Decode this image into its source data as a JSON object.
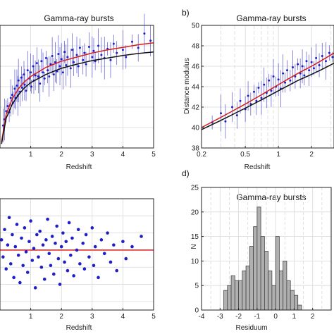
{
  "colors": {
    "points": "#1f1fc8",
    "red_curve": "#d81b1b",
    "black_curve": "#111111",
    "bars": "#b0b0b0",
    "grid": "#d9d9d9"
  },
  "chart_data": [
    {
      "type": "scatter",
      "panel_label": "",
      "title": "Gamma-ray bursts",
      "xlabel": "Redshift",
      "ylabel": "",
      "xlim": [
        0,
        5
      ],
      "ylim": [
        38,
        50
      ],
      "xticks": [
        1,
        2,
        3,
        4,
        5
      ],
      "grid": true,
      "error_bars": true,
      "curves": [
        {
          "color": "red",
          "x": [
            0.05,
            0.2,
            0.4,
            0.6,
            0.8,
            1.0,
            1.5,
            2.0,
            2.5,
            3.0,
            3.5,
            4.0,
            4.5,
            5.0
          ],
          "y": [
            38.6,
            41.3,
            42.8,
            43.8,
            44.5,
            45.0,
            45.9,
            46.5,
            46.9,
            47.3,
            47.6,
            47.85,
            48.1,
            48.3
          ]
        },
        {
          "color": "black",
          "x": [
            0.05,
            0.2,
            0.4,
            0.6,
            0.8,
            1.0,
            1.5,
            2.0,
            2.5,
            3.0,
            3.5,
            4.0,
            4.5,
            5.0
          ],
          "y": [
            38.4,
            40.9,
            42.3,
            43.2,
            43.9,
            44.4,
            45.2,
            45.8,
            46.2,
            46.55,
            46.8,
            47.05,
            47.25,
            47.4
          ]
        }
      ],
      "points": [
        [
          0.1,
          40.2
        ],
        [
          0.15,
          40.8
        ],
        [
          0.2,
          41.6
        ],
        [
          0.25,
          42.1
        ],
        [
          0.3,
          41.5
        ],
        [
          0.35,
          42.9
        ],
        [
          0.4,
          43.2
        ],
        [
          0.42,
          42.4
        ],
        [
          0.48,
          43.8
        ],
        [
          0.5,
          42.9
        ],
        [
          0.55,
          44.1
        ],
        [
          0.58,
          43.1
        ],
        [
          0.6,
          44.6
        ],
        [
          0.65,
          43.5
        ],
        [
          0.7,
          44.9
        ],
        [
          0.72,
          43.9
        ],
        [
          0.78,
          45.2
        ],
        [
          0.8,
          44.2
        ],
        [
          0.85,
          43.6
        ],
        [
          0.9,
          45.6
        ],
        [
          0.95,
          44.8
        ],
        [
          1.0,
          45.4
        ],
        [
          1.02,
          44.0
        ],
        [
          1.08,
          46.0
        ],
        [
          1.1,
          44.6
        ],
        [
          1.15,
          45.1
        ],
        [
          1.2,
          46.3
        ],
        [
          1.25,
          45.0
        ],
        [
          1.3,
          44.3
        ],
        [
          1.35,
          46.5
        ],
        [
          1.4,
          45.4
        ],
        [
          1.45,
          44.8
        ],
        [
          1.5,
          46.8
        ],
        [
          1.55,
          45.6
        ],
        [
          1.6,
          45.0
        ],
        [
          1.65,
          46.2
        ],
        [
          1.7,
          47.0
        ],
        [
          1.75,
          45.2
        ],
        [
          1.8,
          46.4
        ],
        [
          1.85,
          45.5
        ],
        [
          1.9,
          47.2
        ],
        [
          1.95,
          46.0
        ],
        [
          2.0,
          46.7
        ],
        [
          2.05,
          45.4
        ],
        [
          2.1,
          47.4
        ],
        [
          2.15,
          46.1
        ],
        [
          2.2,
          46.9
        ],
        [
          2.3,
          45.8
        ],
        [
          2.35,
          47.6
        ],
        [
          2.4,
          46.4
        ],
        [
          2.5,
          47.1
        ],
        [
          2.55,
          46.0
        ],
        [
          2.6,
          47.8
        ],
        [
          2.7,
          46.6
        ],
        [
          2.75,
          47.3
        ],
        [
          2.8,
          46.2
        ],
        [
          2.9,
          47.9
        ],
        [
          3.0,
          46.9
        ],
        [
          3.05,
          47.5
        ],
        [
          3.1,
          46.5
        ],
        [
          3.2,
          48.0
        ],
        [
          3.3,
          47.1
        ],
        [
          3.4,
          46.8
        ],
        [
          3.5,
          47.7
        ],
        [
          3.6,
          46.6
        ],
        [
          3.7,
          48.2
        ],
        [
          3.8,
          47.3
        ],
        [
          4.0,
          47.6
        ],
        [
          4.1,
          46.9
        ],
        [
          4.3,
          48.4
        ],
        [
          4.5,
          47.8
        ],
        [
          4.7,
          49.2
        ],
        [
          4.9,
          48.5
        ]
      ]
    },
    {
      "type": "scatter",
      "panel_label": "b)",
      "title": "Gamma-ray bursts",
      "xlabel": "Redshift",
      "ylabel": "Distance modulus",
      "xscale": "log",
      "xlim": [
        0.2,
        3.2
      ],
      "ylim": [
        38,
        50
      ],
      "xticks": [
        0.2,
        0.5,
        1,
        2
      ],
      "xtick_labels": [
        "0.2",
        "0.5",
        "1",
        "2"
      ],
      "yticks": [
        38,
        40,
        42,
        44,
        46,
        48,
        50
      ],
      "grid": true,
      "error_bars": true,
      "curves": [
        {
          "color": "red",
          "x": [
            0.2,
            0.3,
            0.5,
            0.7,
            1.0,
            1.5,
            2.0,
            2.5,
            3.2
          ],
          "y": [
            40.0,
            41.0,
            42.3,
            43.2,
            44.2,
            45.3,
            46.0,
            46.6,
            47.3
          ]
        },
        {
          "color": "black",
          "x": [
            0.2,
            0.3,
            0.5,
            0.7,
            1.0,
            1.5,
            2.0,
            2.5,
            3.2
          ],
          "y": [
            39.8,
            40.7,
            41.9,
            42.7,
            43.6,
            44.6,
            45.2,
            45.7,
            46.3
          ]
        }
      ],
      "points": [
        [
          0.25,
          40.5
        ],
        [
          0.3,
          41.4
        ],
        [
          0.33,
          40.6
        ],
        [
          0.38,
          42.0
        ],
        [
          0.42,
          41.2
        ],
        [
          0.45,
          42.6
        ],
        [
          0.5,
          41.8
        ],
        [
          0.53,
          43.1
        ],
        [
          0.56,
          42.3
        ],
        [
          0.6,
          43.5
        ],
        [
          0.63,
          42.6
        ],
        [
          0.66,
          43.9
        ],
        [
          0.7,
          42.9
        ],
        [
          0.74,
          44.2
        ],
        [
          0.78,
          43.4
        ],
        [
          0.82,
          44.6
        ],
        [
          0.86,
          43.6
        ],
        [
          0.9,
          45.0
        ],
        [
          0.95,
          44.0
        ],
        [
          1.0,
          44.7
        ],
        [
          1.05,
          43.8
        ],
        [
          1.1,
          45.3
        ],
        [
          1.15,
          44.4
        ],
        [
          1.2,
          45.6
        ],
        [
          1.28,
          44.6
        ],
        [
          1.35,
          45.9
        ],
        [
          1.42,
          45.0
        ],
        [
          1.5,
          46.2
        ],
        [
          1.58,
          45.3
        ],
        [
          1.65,
          46.0
        ],
        [
          1.72,
          45.1
        ],
        [
          1.8,
          46.5
        ],
        [
          1.9,
          45.6
        ],
        [
          2.0,
          46.4
        ],
        [
          2.1,
          45.8
        ],
        [
          2.2,
          46.8
        ],
        [
          2.35,
          46.1
        ],
        [
          2.5,
          47.0
        ],
        [
          2.7,
          46.5
        ],
        [
          2.9,
          47.3
        ],
        [
          3.1,
          46.9
        ]
      ]
    },
    {
      "type": "scatter",
      "panel_label": "",
      "title": "",
      "xlabel": "Redshift",
      "ylabel": "",
      "xlim": [
        0,
        5
      ],
      "ylim": [
        -3.5,
        3
      ],
      "xticks": [
        1,
        2,
        3,
        4,
        5
      ],
      "grid": true,
      "hline": {
        "color": "red",
        "y": 0
      },
      "points": [
        [
          0.05,
          0.6
        ],
        [
          0.1,
          -0.4
        ],
        [
          0.15,
          1.2
        ],
        [
          0.2,
          -1.1
        ],
        [
          0.25,
          0.3
        ],
        [
          0.3,
          1.9
        ],
        [
          0.35,
          -0.8
        ],
        [
          0.4,
          0.9
        ],
        [
          0.45,
          -1.6
        ],
        [
          0.5,
          0.2
        ],
        [
          0.55,
          1.5
        ],
        [
          0.6,
          -0.3
        ],
        [
          0.65,
          -1.9
        ],
        [
          0.7,
          0.7
        ],
        [
          0.75,
          -0.9
        ],
        [
          0.8,
          1.3
        ],
        [
          0.85,
          -0.1
        ],
        [
          0.9,
          -1.3
        ],
        [
          0.95,
          0.5
        ],
        [
          1.0,
          1.7
        ],
        [
          1.05,
          -0.6
        ],
        [
          1.1,
          0.1
        ],
        [
          1.15,
          -2.2
        ],
        [
          1.2,
          0.9
        ],
        [
          1.25,
          -0.4
        ],
        [
          1.3,
          1.1
        ],
        [
          1.35,
          -1.0
        ],
        [
          1.4,
          0.3
        ],
        [
          1.45,
          -1.7
        ],
        [
          1.5,
          0.6
        ],
        [
          1.55,
          1.8
        ],
        [
          1.6,
          -0.2
        ],
        [
          1.65,
          -0.9
        ],
        [
          1.7,
          0.8
        ],
        [
          1.75,
          -1.4
        ],
        [
          1.8,
          0.4
        ],
        [
          1.85,
          1.4
        ],
        [
          1.9,
          -0.5
        ],
        [
          1.95,
          -2.0
        ],
        [
          2.0,
          0.2
        ],
        [
          2.05,
          1.0
        ],
        [
          2.1,
          -0.7
        ],
        [
          2.15,
          0.5
        ],
        [
          2.2,
          -1.2
        ],
        [
          2.25,
          1.6
        ],
        [
          2.3,
          -0.3
        ],
        [
          2.35,
          0.7
        ],
        [
          2.4,
          -1.5
        ],
        [
          2.5,
          0.0
        ],
        [
          2.55,
          1.2
        ],
        [
          2.6,
          -0.8
        ],
        [
          2.7,
          0.4
        ],
        [
          2.75,
          -1.1
        ],
        [
          2.8,
          0.9
        ],
        [
          2.9,
          -0.4
        ],
        [
          3.0,
          1.3
        ],
        [
          3.05,
          -0.9
        ],
        [
          3.1,
          0.2
        ],
        [
          3.2,
          -1.6
        ],
        [
          3.3,
          0.6
        ],
        [
          3.4,
          -0.2
        ],
        [
          3.5,
          1.0
        ],
        [
          3.6,
          -0.7
        ],
        [
          3.7,
          0.3
        ],
        [
          3.8,
          -1.2
        ],
        [
          4.0,
          0.5
        ],
        [
          4.1,
          -0.5
        ],
        [
          4.3,
          0.2
        ],
        [
          4.6,
          0.8
        ]
      ]
    },
    {
      "type": "bar",
      "panel_label": "d)",
      "title": "Gamma-ray bursts",
      "xlabel": "Residuum",
      "ylabel": "N",
      "xlim": [
        -4,
        3
      ],
      "ylim": [
        0,
        25
      ],
      "xticks": [
        -4,
        -3,
        -2,
        -1,
        0,
        1,
        2
      ],
      "yticks": [
        0,
        5,
        10,
        15,
        20,
        25
      ],
      "grid": true,
      "bin_width": 0.2,
      "bin_left_edges": [
        -2.8,
        -2.6,
        -2.4,
        -2.2,
        -2.0,
        -1.8,
        -1.6,
        -1.4,
        -1.2,
        -1.0,
        -0.8,
        -0.6,
        -0.4,
        -0.2,
        0.0,
        0.2,
        0.4,
        0.6,
        0.8,
        1.0,
        1.2
      ],
      "values": [
        4,
        5,
        7,
        6,
        6,
        8,
        9,
        13,
        17,
        21,
        15,
        12,
        8,
        5,
        15,
        8,
        10,
        6,
        4,
        3,
        1
      ]
    }
  ]
}
